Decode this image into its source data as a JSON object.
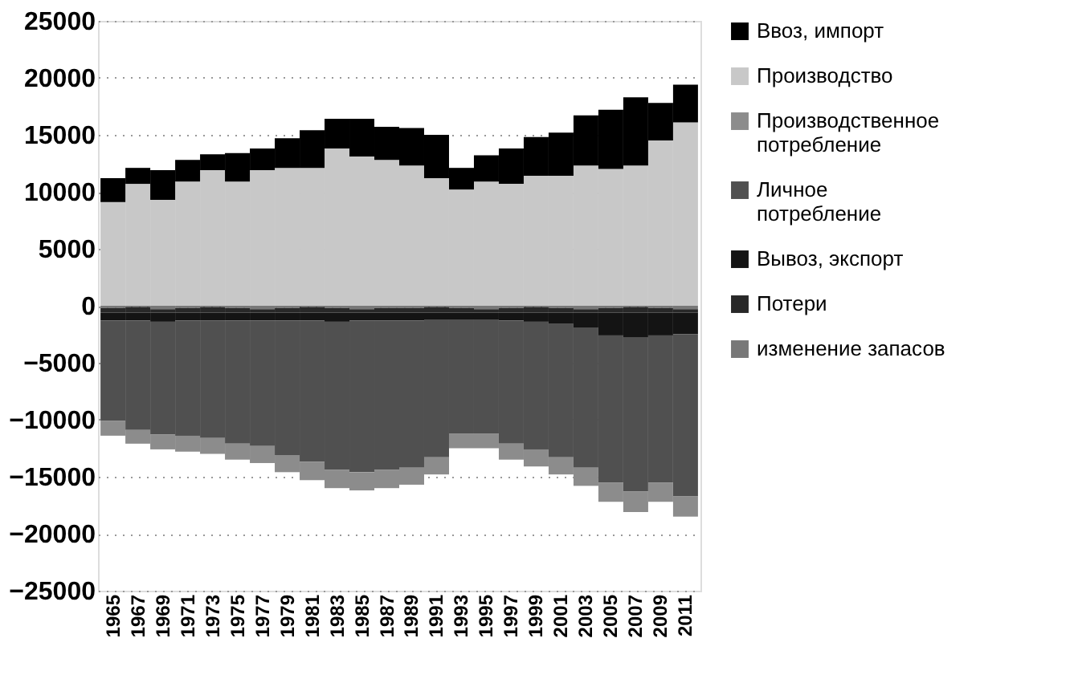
{
  "chart_data": {
    "type": "bar",
    "stacked": true,
    "categories": [
      "1965",
      "1967",
      "1969",
      "1971",
      "1973",
      "1975",
      "1977",
      "1979",
      "1981",
      "1983",
      "1985",
      "1987",
      "1989",
      "1991",
      "1993",
      "1995",
      "1997",
      "1999",
      "2001",
      "2003",
      "2005",
      "2007",
      "2009",
      "2011"
    ],
    "series": [
      {
        "name": "изменение запасов",
        "color": "#787878",
        "values": [
          -200,
          -100,
          -300,
          -200,
          -100,
          -200,
          -300,
          -200,
          -100,
          -200,
          -300,
          -200,
          -200,
          -100,
          -200,
          -300,
          -200,
          -100,
          -200,
          -300,
          -200,
          -100,
          -200,
          -300
        ]
      },
      {
        "name": "Потери",
        "color": "#282828",
        "values": [
          -400,
          -500,
          -300,
          -400,
          -500,
          -400,
          -300,
          -400,
          -500,
          -400,
          -300,
          -400,
          -400,
          -500,
          -400,
          -300,
          -400,
          -500,
          -400,
          -300,
          -400,
          -500,
          -400,
          -300
        ]
      },
      {
        "name": "Вывоз, экспорт",
        "color": "#141414",
        "values": [
          -700,
          -700,
          -800,
          -700,
          -700,
          -700,
          -700,
          -700,
          -700,
          -800,
          -700,
          -700,
          -700,
          -600,
          -600,
          -600,
          -700,
          -800,
          -1000,
          -1300,
          -2000,
          -2200,
          -2000,
          -1900
        ]
      },
      {
        "name": "Личное потребление",
        "color": "#505050",
        "values": [
          -8800,
          -9600,
          -9900,
          -10100,
          -10300,
          -10800,
          -11000,
          -11800,
          -12400,
          -13000,
          -13300,
          -13100,
          -12900,
          -12100,
          -10000,
          -10000,
          -10800,
          -11200,
          -11700,
          -12300,
          -12900,
          -13500,
          -12900,
          -14200
        ]
      },
      {
        "name": "Производственное потребление",
        "color": "#8c8c8c",
        "values": [
          -1300,
          -1200,
          -1300,
          -1400,
          -1400,
          -1400,
          -1500,
          -1500,
          -1600,
          -1600,
          -1600,
          -1600,
          -1500,
          -1500,
          -1300,
          -1300,
          -1400,
          -1500,
          -1500,
          -1600,
          -1700,
          -1800,
          -1700,
          -1800
        ]
      },
      {
        "name": "Производство",
        "color": "#c8c8c8",
        "values": [
          9100,
          10700,
          9300,
          10900,
          11900,
          10900,
          11900,
          12100,
          12100,
          13800,
          13100,
          12800,
          12300,
          11200,
          10200,
          10900,
          10700,
          11400,
          11400,
          12300,
          12000,
          12300,
          14500,
          16100
        ]
      },
      {
        "name": "Ввоз, импорт",
        "color": "#000000",
        "values": [
          2100,
          1400,
          2600,
          1900,
          1400,
          2500,
          1900,
          2600,
          3300,
          2600,
          3300,
          2900,
          3300,
          3800,
          1900,
          2300,
          3100,
          3400,
          3800,
          4400,
          5200,
          6000,
          3300,
          3300
        ]
      }
    ],
    "ylim": [
      -25000,
      25000
    ],
    "yticks": [
      -25000,
      -20000,
      -15000,
      -10000,
      -5000,
      0,
      5000,
      10000,
      15000,
      20000,
      25000
    ],
    "grid": "y",
    "legend": "right"
  }
}
